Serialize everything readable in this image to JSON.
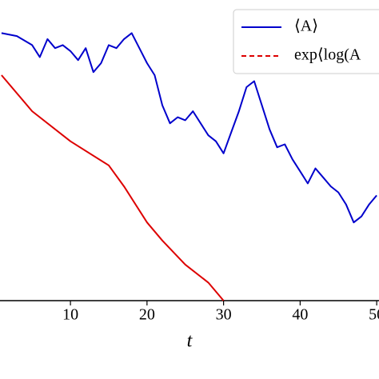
{
  "chart_data": {
    "type": "line",
    "x_label": "t",
    "xlim": [
      0.8,
      50.3
    ],
    "xticks": [
      10,
      20,
      30,
      40,
      50
    ],
    "ylim": [
      0,
      1
    ],
    "legend": "upper right",
    "series": [
      {
        "name": "⟨A⟩",
        "color": "#0000cc",
        "style": "solid",
        "x": [
          1,
          3,
          5,
          6,
          7,
          8,
          9,
          10,
          11,
          12,
          13,
          14,
          15,
          16,
          17,
          18,
          19,
          20,
          21,
          22,
          23,
          24,
          25,
          26,
          27,
          28,
          29,
          30,
          31,
          32,
          33,
          34,
          35,
          36,
          37,
          38,
          39,
          40,
          41,
          42,
          43,
          44,
          45,
          46,
          47,
          48,
          49,
          50
        ],
        "values": [
          0.89,
          0.88,
          0.85,
          0.81,
          0.87,
          0.84,
          0.85,
          0.83,
          0.8,
          0.84,
          0.76,
          0.79,
          0.85,
          0.84,
          0.87,
          0.89,
          0.84,
          0.79,
          0.75,
          0.65,
          0.59,
          0.61,
          0.6,
          0.63,
          0.59,
          0.55,
          0.53,
          0.49,
          0.56,
          0.63,
          0.71,
          0.73,
          0.65,
          0.57,
          0.51,
          0.52,
          0.47,
          0.43,
          0.39,
          0.44,
          0.41,
          0.38,
          0.36,
          0.32,
          0.26,
          0.28,
          0.32,
          0.35
        ]
      },
      {
        "name": "exp⟨log(A",
        "color": "#dd0000",
        "style": "dashed",
        "x": [
          1,
          5,
          10,
          15,
          17,
          20,
          22,
          25,
          28,
          30
        ],
        "values": [
          0.75,
          0.63,
          0.53,
          0.45,
          0.38,
          0.26,
          0.2,
          0.12,
          0.06,
          0.0
        ]
      }
    ]
  }
}
